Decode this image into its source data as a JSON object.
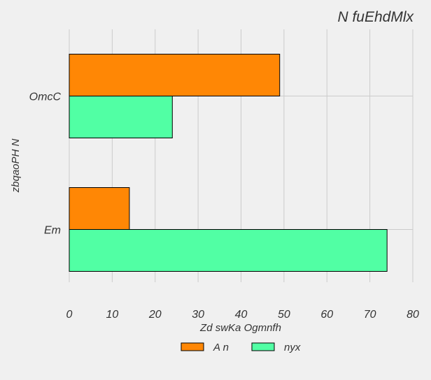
{
  "chart_data": {
    "type": "bar",
    "orientation": "horizontal",
    "title": "N fuEhdMlx",
    "xlabel": "Zd swKa Ogmnfh",
    "ylabel": "zbqaoPH N",
    "categories": [
      "OmcC",
      "Em"
    ],
    "series": [
      {
        "name": "A n",
        "values": [
          49,
          14
        ],
        "color": "#ff8705"
      },
      {
        "name": "nyx",
        "values": [
          24,
          74
        ],
        "color": "#51ffa4"
      }
    ],
    "xlim": [
      0,
      80
    ],
    "xticks": [
      "0",
      "10",
      "20",
      "30",
      "40",
      "50",
      "60",
      "70",
      "80"
    ],
    "grid": true,
    "legend_position": "bottom-center"
  }
}
